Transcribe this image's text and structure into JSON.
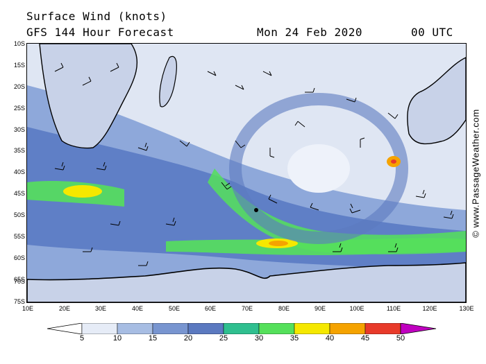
{
  "header": {
    "title": "Surface Wind (knots)",
    "model": "GFS 144 Hour Forecast",
    "date": "Mon 24 Feb 2020",
    "time": "00 UTC"
  },
  "credit": "© www.PassageWeather.com",
  "map": {
    "lat_labels": [
      "10S",
      "15S",
      "20S",
      "25S",
      "30S",
      "35S",
      "40S",
      "45S",
      "50S",
      "55S",
      "60S",
      "65S",
      "70S",
      "75S"
    ],
    "lon_labels": [
      "10E",
      "20E",
      "30E",
      "40E",
      "50E",
      "60E",
      "70E",
      "80E",
      "90E",
      "100E",
      "110E",
      "120E",
      "130E"
    ],
    "lat_range": [
      -10,
      -75
    ],
    "lon_range": [
      10,
      130
    ]
  },
  "colorbar": {
    "labels": [
      "5",
      "10",
      "15",
      "20",
      "25",
      "30",
      "35",
      "40",
      "45",
      "50"
    ],
    "colors": [
      "#e6ecf7",
      "#a7bde3",
      "#7895d0",
      "#5b79c0",
      "#2fbf8f",
      "#55e05b",
      "#f5e800",
      "#f5a300",
      "#e83a2a",
      "#b40000",
      "#c000c0"
    ]
  }
}
